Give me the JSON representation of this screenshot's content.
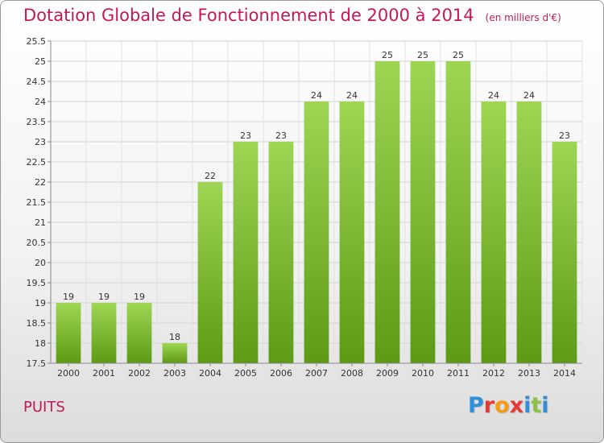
{
  "header": {
    "title": "Dotation Globale de Fonctionnement de 2000 à 2014",
    "subtitle": "(en milliers d'€)"
  },
  "footer": {
    "commune": "PUITS",
    "brand": "Proxiti"
  },
  "colors": {
    "title": "#c2185b",
    "bar_top": "#9ed654",
    "bar_bottom": "#5e9a16",
    "brand_letters": [
      "#2f8fd8",
      "#e53935",
      "#f39c12",
      "#e53935",
      "#2f8fd8",
      "#8bc34a",
      "#2f8fd8"
    ]
  },
  "chart_data": {
    "type": "bar",
    "categories": [
      "2000",
      "2001",
      "2002",
      "2003",
      "2004",
      "2005",
      "2006",
      "2007",
      "2008",
      "2009",
      "2010",
      "2011",
      "2012",
      "2013",
      "2014"
    ],
    "values": [
      19,
      19,
      19,
      18,
      22,
      23,
      23,
      24,
      24,
      25,
      25,
      25,
      24,
      24,
      23
    ],
    "title": "Dotation Globale de Fonctionnement de 2000 à 2014",
    "xlabel": "",
    "ylabel": "",
    "ylim": [
      17.5,
      25.5
    ],
    "yticks": [
      17.5,
      18,
      18.5,
      19,
      19.5,
      20,
      20.5,
      21,
      21.5,
      22,
      22.5,
      23,
      23.5,
      24,
      24.5,
      25,
      25.5
    ],
    "grid": true,
    "legend": "none"
  }
}
